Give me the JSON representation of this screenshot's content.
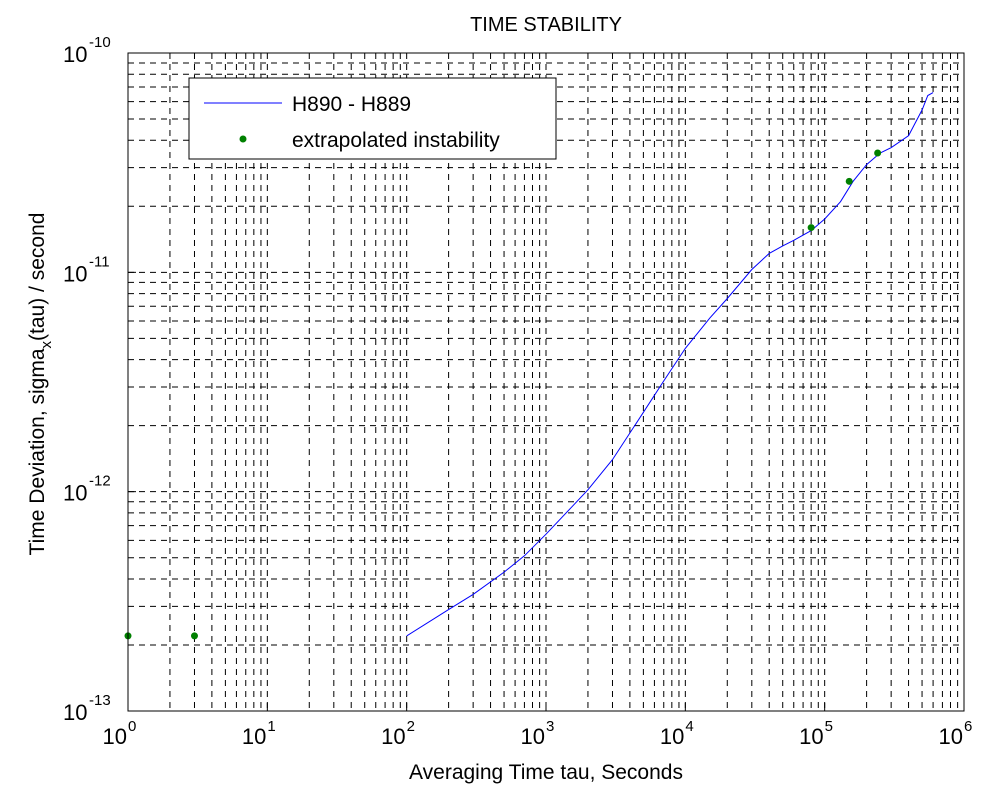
{
  "chart_data": {
    "type": "line",
    "title": "TIME STABILITY",
    "xlabel": "Averaging Time tau, Seconds",
    "ylabel": "Time Deviation,  sigma",
    "ylabel_subscript": "x",
    "ylabel_suffix": "(tau) / second",
    "xscale": "log",
    "yscale": "log",
    "xlim": [
      1,
      1000000
    ],
    "ylim": [
      1e-13,
      1e-10
    ],
    "grid": true,
    "legend_position": "top-left",
    "x_ticks": [
      {
        "base": "10",
        "exp": "0"
      },
      {
        "base": "10",
        "exp": "1"
      },
      {
        "base": "10",
        "exp": "2"
      },
      {
        "base": "10",
        "exp": "3"
      },
      {
        "base": "10",
        "exp": "4"
      },
      {
        "base": "10",
        "exp": "5"
      },
      {
        "base": "10",
        "exp": "6"
      }
    ],
    "y_ticks": [
      {
        "base": "10",
        "exp": "-13"
      },
      {
        "base": "10",
        "exp": "-12"
      },
      {
        "base": "10",
        "exp": "-11"
      },
      {
        "base": "10",
        "exp": "-10"
      }
    ],
    "series": [
      {
        "name": "H890 - H889",
        "kind": "line",
        "color": "#0000ff",
        "x": [
          100,
          200,
          300,
          500,
          700,
          1000,
          1500,
          2000,
          3000,
          5000,
          7000,
          10000,
          15000,
          20000,
          30000,
          40000,
          50000,
          60000,
          80000,
          100000,
          130000,
          160000,
          200000,
          250000,
          300000,
          400000,
          500000,
          550000,
          600000
        ],
        "y": [
          2.2e-13,
          2.9e-13,
          3.4e-13,
          4.3e-13,
          5.1e-13,
          6.4e-13,
          8.4e-13,
          1.02e-12,
          1.4e-12,
          2.3e-12,
          3.2e-12,
          4.5e-12,
          6.2e-12,
          7.6e-12,
          1.03e-11,
          1.22e-11,
          1.32e-11,
          1.4e-11,
          1.55e-11,
          1.75e-11,
          2.1e-11,
          2.6e-11,
          3.1e-11,
          3.5e-11,
          3.7e-11,
          4.2e-11,
          5.5e-11,
          6.4e-11,
          6.6e-11
        ]
      },
      {
        "name": "extrapolated instability",
        "kind": "scatter",
        "color": "#008000",
        "x": [
          1,
          3,
          80000,
          150000,
          240000
        ],
        "y": [
          2.2e-13,
          2.2e-13,
          1.6e-11,
          2.6e-11,
          3.5e-11
        ]
      }
    ]
  }
}
